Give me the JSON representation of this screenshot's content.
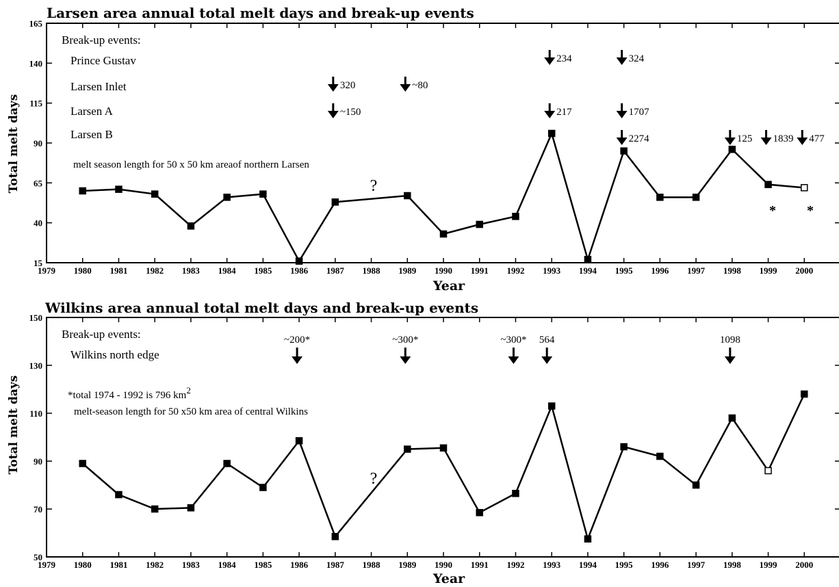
{
  "chart_data": [
    {
      "type": "line",
      "title": "Larsen area annual total melt days and break-up events",
      "xlabel": "Year",
      "ylabel": "Total melt days",
      "xlim": [
        1979,
        2000
      ],
      "ylim": [
        15,
        165
      ],
      "x_ticks": [
        "1979",
        "1980",
        "1981",
        "1982",
        "1983",
        "1984",
        "1985",
        "1986",
        "1987",
        "1988",
        "1989",
        "1990",
        "1991",
        "1992",
        "1993",
        "1994",
        "1995",
        "1996",
        "1997",
        "1998",
        "1999",
        "2000"
      ],
      "y_ticks": [
        "15",
        "40",
        "65",
        "90",
        "115",
        "140",
        "165"
      ],
      "x": [
        1980,
        1981,
        1982,
        1983,
        1984,
        1985,
        1986,
        1987,
        1989,
        1990,
        1991,
        1992,
        1993,
        1994,
        1995,
        1996,
        1997,
        1998,
        1999,
        2000
      ],
      "series": [
        {
          "values": [
            60,
            61,
            58,
            38,
            56,
            58,
            16,
            53,
            57,
            33,
            39,
            44,
            96,
            17,
            85,
            56,
            56,
            86,
            64,
            62
          ]
        }
      ],
      "missing_year_label": {
        "year": 1988,
        "text": "?"
      },
      "annotations": {
        "break_up_title": "Break-up events:",
        "rows": [
          {
            "label": "Prince Gustav",
            "events": [
              {
                "year": 1993,
                "text": "234"
              },
              {
                "year": 1995,
                "text": "324"
              }
            ]
          },
          {
            "label": "Larsen Inlet",
            "events": [
              {
                "year": 1987,
                "text": "320"
              },
              {
                "year": 1989,
                "text": "~80"
              }
            ]
          },
          {
            "label": "Larsen  A",
            "events": [
              {
                "year": 1987,
                "text": "~150"
              },
              {
                "year": 1993,
                "text": "217"
              },
              {
                "year": 1995,
                "text": "1707"
              }
            ]
          },
          {
            "label": "Larsen  B",
            "events": [
              {
                "year": 1995,
                "text": "2274"
              },
              {
                "year": 1998,
                "text": "125"
              },
              {
                "year": 1999,
                "text": "1839"
              },
              {
                "year": 2000,
                "text": "477"
              }
            ]
          }
        ],
        "note": "melt season length for 50 x 50 km  areaof northern Larsen",
        "stars": [
          {
            "year": 1999,
            "text": "*"
          },
          {
            "year": 2000,
            "text": "*"
          }
        ]
      }
    },
    {
      "type": "line",
      "title": "Wilkins area annual total melt days and break-up events",
      "xlabel": "Year",
      "ylabel": "Total melt days",
      "xlim": [
        1979,
        2000
      ],
      "ylim": [
        50,
        150
      ],
      "x_ticks": [
        "1979",
        "1980",
        "1981",
        "1982",
        "1983",
        "1984",
        "1985",
        "1986",
        "1987",
        "1988",
        "1989",
        "1990",
        "1991",
        "1992",
        "1993",
        "1994",
        "1995",
        "1996",
        "1997",
        "1998",
        "1999",
        "2000"
      ],
      "y_ticks": [
        "50",
        "70",
        "90",
        "110",
        "130",
        "150"
      ],
      "x": [
        1980,
        1981,
        1982,
        1983,
        1984,
        1985,
        1986,
        1987,
        1989,
        1990,
        1991,
        1992,
        1993,
        1994,
        1995,
        1996,
        1997,
        1998,
        1999,
        2000
      ],
      "series": [
        {
          "values": [
            89,
            76,
            70,
            70.5,
            89,
            79,
            98.5,
            58.5,
            95,
            95.5,
            68.5,
            76.5,
            113,
            57.5,
            96,
            92,
            80,
            108,
            86,
            118
          ]
        }
      ],
      "missing_year_label": {
        "year": 1988,
        "text": "?"
      },
      "annotations": {
        "break_up_title": "Break-up events:",
        "row_label": "Wilkins north edge",
        "events": [
          {
            "year": 1986,
            "text": "~200*"
          },
          {
            "year": 1989,
            "text": "~300*"
          },
          {
            "year": 1992,
            "text": "~300*"
          },
          {
            "year": 1993,
            "text": "564"
          },
          {
            "year": 1998,
            "text": "1098"
          }
        ],
        "note_line1": "*total 1974 - 1992 is 796 km",
        "note_line1_sup": "2",
        "note_line2": "melt-season length for 50 x50 km area of central Wilkins"
      }
    }
  ]
}
